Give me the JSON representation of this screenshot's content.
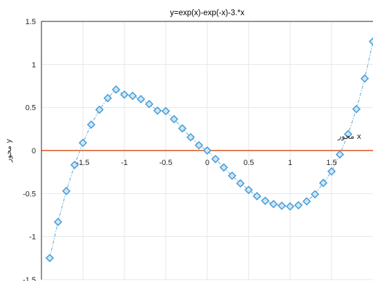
{
  "chart_data": {
    "type": "line",
    "title": "y=exp(x)-exp(-x)-3.*x",
    "xlabel": "محور x",
    "ylabel": "محور y",
    "xlim": [
      -2,
      2
    ],
    "ylim": [
      -1.5,
      1.5
    ],
    "xticks": [
      -1.5,
      -1,
      -0.5,
      0,
      0.5,
      1,
      1.5
    ],
    "xtick_labels": [
      "-1.5",
      "-1",
      "-0.5",
      "0",
      "0.5",
      "1",
      "1.5"
    ],
    "yticks": [
      -1.5,
      -1,
      -0.5,
      0,
      0.5,
      1,
      1.5
    ],
    "ytick_labels": [
      "-1.5",
      "-1",
      "-0.5",
      "0",
      "0.5",
      "1",
      "1.5"
    ],
    "grid": true,
    "series": [
      {
        "marker": "diamond",
        "line_style": "dash-dot",
        "color": "#4a9fd8",
        "marker_fill": "#cfe6f7",
        "x": [
          -1.9,
          -1.8,
          -1.7,
          -1.6,
          -1.5,
          -1.4,
          -1.3,
          -1.2,
          -1.1,
          -1.0,
          -0.9,
          -0.8,
          -0.7,
          -0.6,
          -0.5,
          -0.4,
          -0.3,
          -0.2,
          -0.1,
          0.0,
          0.1,
          0.2,
          0.3,
          0.4,
          0.5,
          0.6,
          0.7,
          0.8,
          0.9,
          1.0,
          1.1,
          1.2,
          1.3,
          1.4,
          1.5,
          1.6,
          1.7,
          1.8,
          1.9,
          2.0
        ],
        "y": [
          -1.249,
          -0.83,
          -0.471,
          -0.167,
          0.089,
          0.301,
          0.474,
          0.609,
          0.708,
          0.65,
          0.635,
          0.597,
          0.539,
          0.463,
          0.458,
          0.364,
          0.257,
          0.154,
          0.061,
          0.0,
          -0.099,
          -0.197,
          -0.293,
          -0.382,
          -0.458,
          -0.53,
          -0.585,
          -0.623,
          -0.642,
          -0.65,
          -0.636,
          -0.591,
          -0.508,
          -0.377,
          -0.243,
          -0.046,
          0.19,
          0.481,
          0.836,
          1.266
        ]
      },
      {
        "name": "",
        "line_style": "solid",
        "color": "#d95319",
        "x": [
          -2,
          2
        ],
        "y": [
          0,
          0
        ]
      }
    ]
  }
}
